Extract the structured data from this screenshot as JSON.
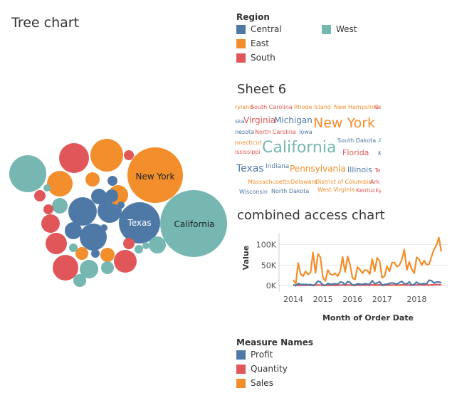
{
  "colors": {
    "central": "#4e79a7",
    "east": "#f28e2b",
    "south": "#e15759",
    "west": "#76b7b2",
    "profit": "#4e79a7",
    "quantity": "#e15759",
    "sales": "#f28e2b"
  },
  "tree_chart": {
    "title": "Tree chart",
    "labels": {
      "new_york": "New York",
      "texas": "Texas",
      "california": "California"
    }
  },
  "region_legend": {
    "title": "Region",
    "items": [
      {
        "label": "Central",
        "color": "#4e79a7"
      },
      {
        "label": "East",
        "color": "#f28e2b"
      },
      {
        "label": "South",
        "color": "#e15759"
      },
      {
        "label": "West",
        "color": "#76b7b2"
      }
    ]
  },
  "sheet6": {
    "title": "Sheet 6",
    "words": [
      {
        "text": "ryland",
        "color": "#f28e2b"
      },
      {
        "text": "South Carolina",
        "color": "#e15759"
      },
      {
        "text": "Rhode Island",
        "color": "#f28e2b"
      },
      {
        "text": "New Hampshire",
        "color": "#f28e2b"
      },
      {
        "text": "Ge",
        "color": "#e15759"
      },
      {
        "text": "ska",
        "color": "#4e79a7"
      },
      {
        "text": "Virginia",
        "color": "#e15759"
      },
      {
        "text": "Michigan",
        "color": "#4e79a7"
      },
      {
        "text": "New York",
        "color": "#f28e2b"
      },
      {
        "text": "nesota",
        "color": "#4e79a7"
      },
      {
        "text": "North Carolina",
        "color": "#e15759"
      },
      {
        "text": "Iowa",
        "color": "#4e79a7"
      },
      {
        "text": "South Dakota",
        "color": "#4e79a7"
      },
      {
        "text": "A",
        "color": "#76b7b2"
      },
      {
        "text": "nnecticut",
        "color": "#f28e2b"
      },
      {
        "text": "California",
        "color": "#76b7b2"
      },
      {
        "text": "Florida",
        "color": "#e15759"
      },
      {
        "text": "Ka",
        "color": "#4e79a7"
      },
      {
        "text": "ississippi",
        "color": "#e15759"
      },
      {
        "text": "Texas",
        "color": "#4e79a7"
      },
      {
        "text": "Indiana",
        "color": "#4e79a7"
      },
      {
        "text": "Pennsylvania",
        "color": "#f28e2b"
      },
      {
        "text": "Illinois",
        "color": "#4e79a7"
      },
      {
        "text": "Te",
        "color": "#e15759"
      },
      {
        "text": "Massachusetts",
        "color": "#f28e2b"
      },
      {
        "text": "Delaware",
        "color": "#f28e2b"
      },
      {
        "text": "District of Columbia",
        "color": "#f28e2b"
      },
      {
        "text": "Ark",
        "color": "#e15759"
      },
      {
        "text": "Wisconsin",
        "color": "#4e79a7"
      },
      {
        "text": "North Dakota",
        "color": "#4e79a7"
      },
      {
        "text": "West Virginia",
        "color": "#f28e2b"
      },
      {
        "text": "Kentucky",
        "color": "#e15759"
      }
    ]
  },
  "chart_data": {
    "type": "line",
    "title": "combined access chart",
    "xlabel": "Month of Order Date",
    "ylabel": "Value",
    "y_ticks": [
      "0K",
      "50K",
      "100K"
    ],
    "x_ticks": [
      "2014",
      "2015",
      "2016",
      "2017",
      "2018"
    ],
    "ylim": [
      -5000,
      120000
    ],
    "x_start_year": 2014,
    "series": [
      {
        "name": "Sales",
        "color": "#f28e2b",
        "values": [
          14000,
          4500,
          55000,
          28000,
          23000,
          35000,
          27000,
          32000,
          81000,
          31000,
          77000,
          69000,
          20000,
          11000,
          38000,
          28000,
          26000,
          30000,
          23000,
          35000,
          70000,
          33000,
          71000,
          51000,
          18000,
          15000,
          45000,
          39000,
          30000,
          38000,
          37000,
          28000,
          65000,
          35000,
          68000,
          60000,
          19000,
          23000,
          47000,
          35000,
          56000,
          56000,
          46000,
          50000,
          63000,
          88000,
          38000,
          58000,
          40000,
          30000,
          69000,
          64000,
          50000,
          61000,
          51000,
          52000,
          70000,
          88000,
          98000,
          117000,
          83000
        ]
      },
      {
        "name": "Profit",
        "color": "#4e79a7",
        "values": [
          2400,
          -200,
          4900,
          3000,
          2600,
          3200,
          1800,
          2900,
          -300,
          3500,
          11000,
          8500,
          2000,
          600,
          5300,
          3400,
          3500,
          4500,
          2900,
          8800,
          7600,
          2200,
          9500,
          7800,
          1500,
          1700,
          4300,
          3700,
          2400,
          4900,
          3200,
          3900,
          12000,
          4300,
          6700,
          9200,
          1200,
          3000,
          3200,
          5300,
          6700,
          5400,
          3500,
          7400,
          10300,
          4600,
          4100,
          9000,
          600,
          3300,
          8500,
          3800,
          4100,
          4900,
          3600,
          13000,
          12000,
          6400,
          8600,
          8800,
          7000
        ]
      },
      {
        "name": "Quantity",
        "color": "#e15759",
        "values": [
          600,
          400,
          900,
          800,
          700,
          900,
          800,
          900,
          1300,
          900,
          1500,
          1400,
          600,
          500,
          1000,
          800,
          800,
          900,
          800,
          1000,
          1500,
          900,
          1600,
          1500,
          500,
          600,
          1100,
          1000,
          900,
          1100,
          1000,
          900,
          1700,
          1100,
          1700,
          1700,
          600,
          700,
          1200,
          1100,
          1400,
          1500,
          1300,
          1400,
          1800,
          2000,
          1200,
          1500,
          1100,
          1000,
          1600,
          1600,
          1400,
          1600,
          1400,
          1500,
          1800,
          2100,
          2200,
          2500,
          1900
        ]
      }
    ]
  },
  "measure_legend": {
    "title": "Measure Names",
    "items": [
      {
        "label": "Profit",
        "color": "#4e79a7"
      },
      {
        "label": "Quantity",
        "color": "#e15759"
      },
      {
        "label": "Sales",
        "color": "#f28e2b"
      }
    ]
  }
}
